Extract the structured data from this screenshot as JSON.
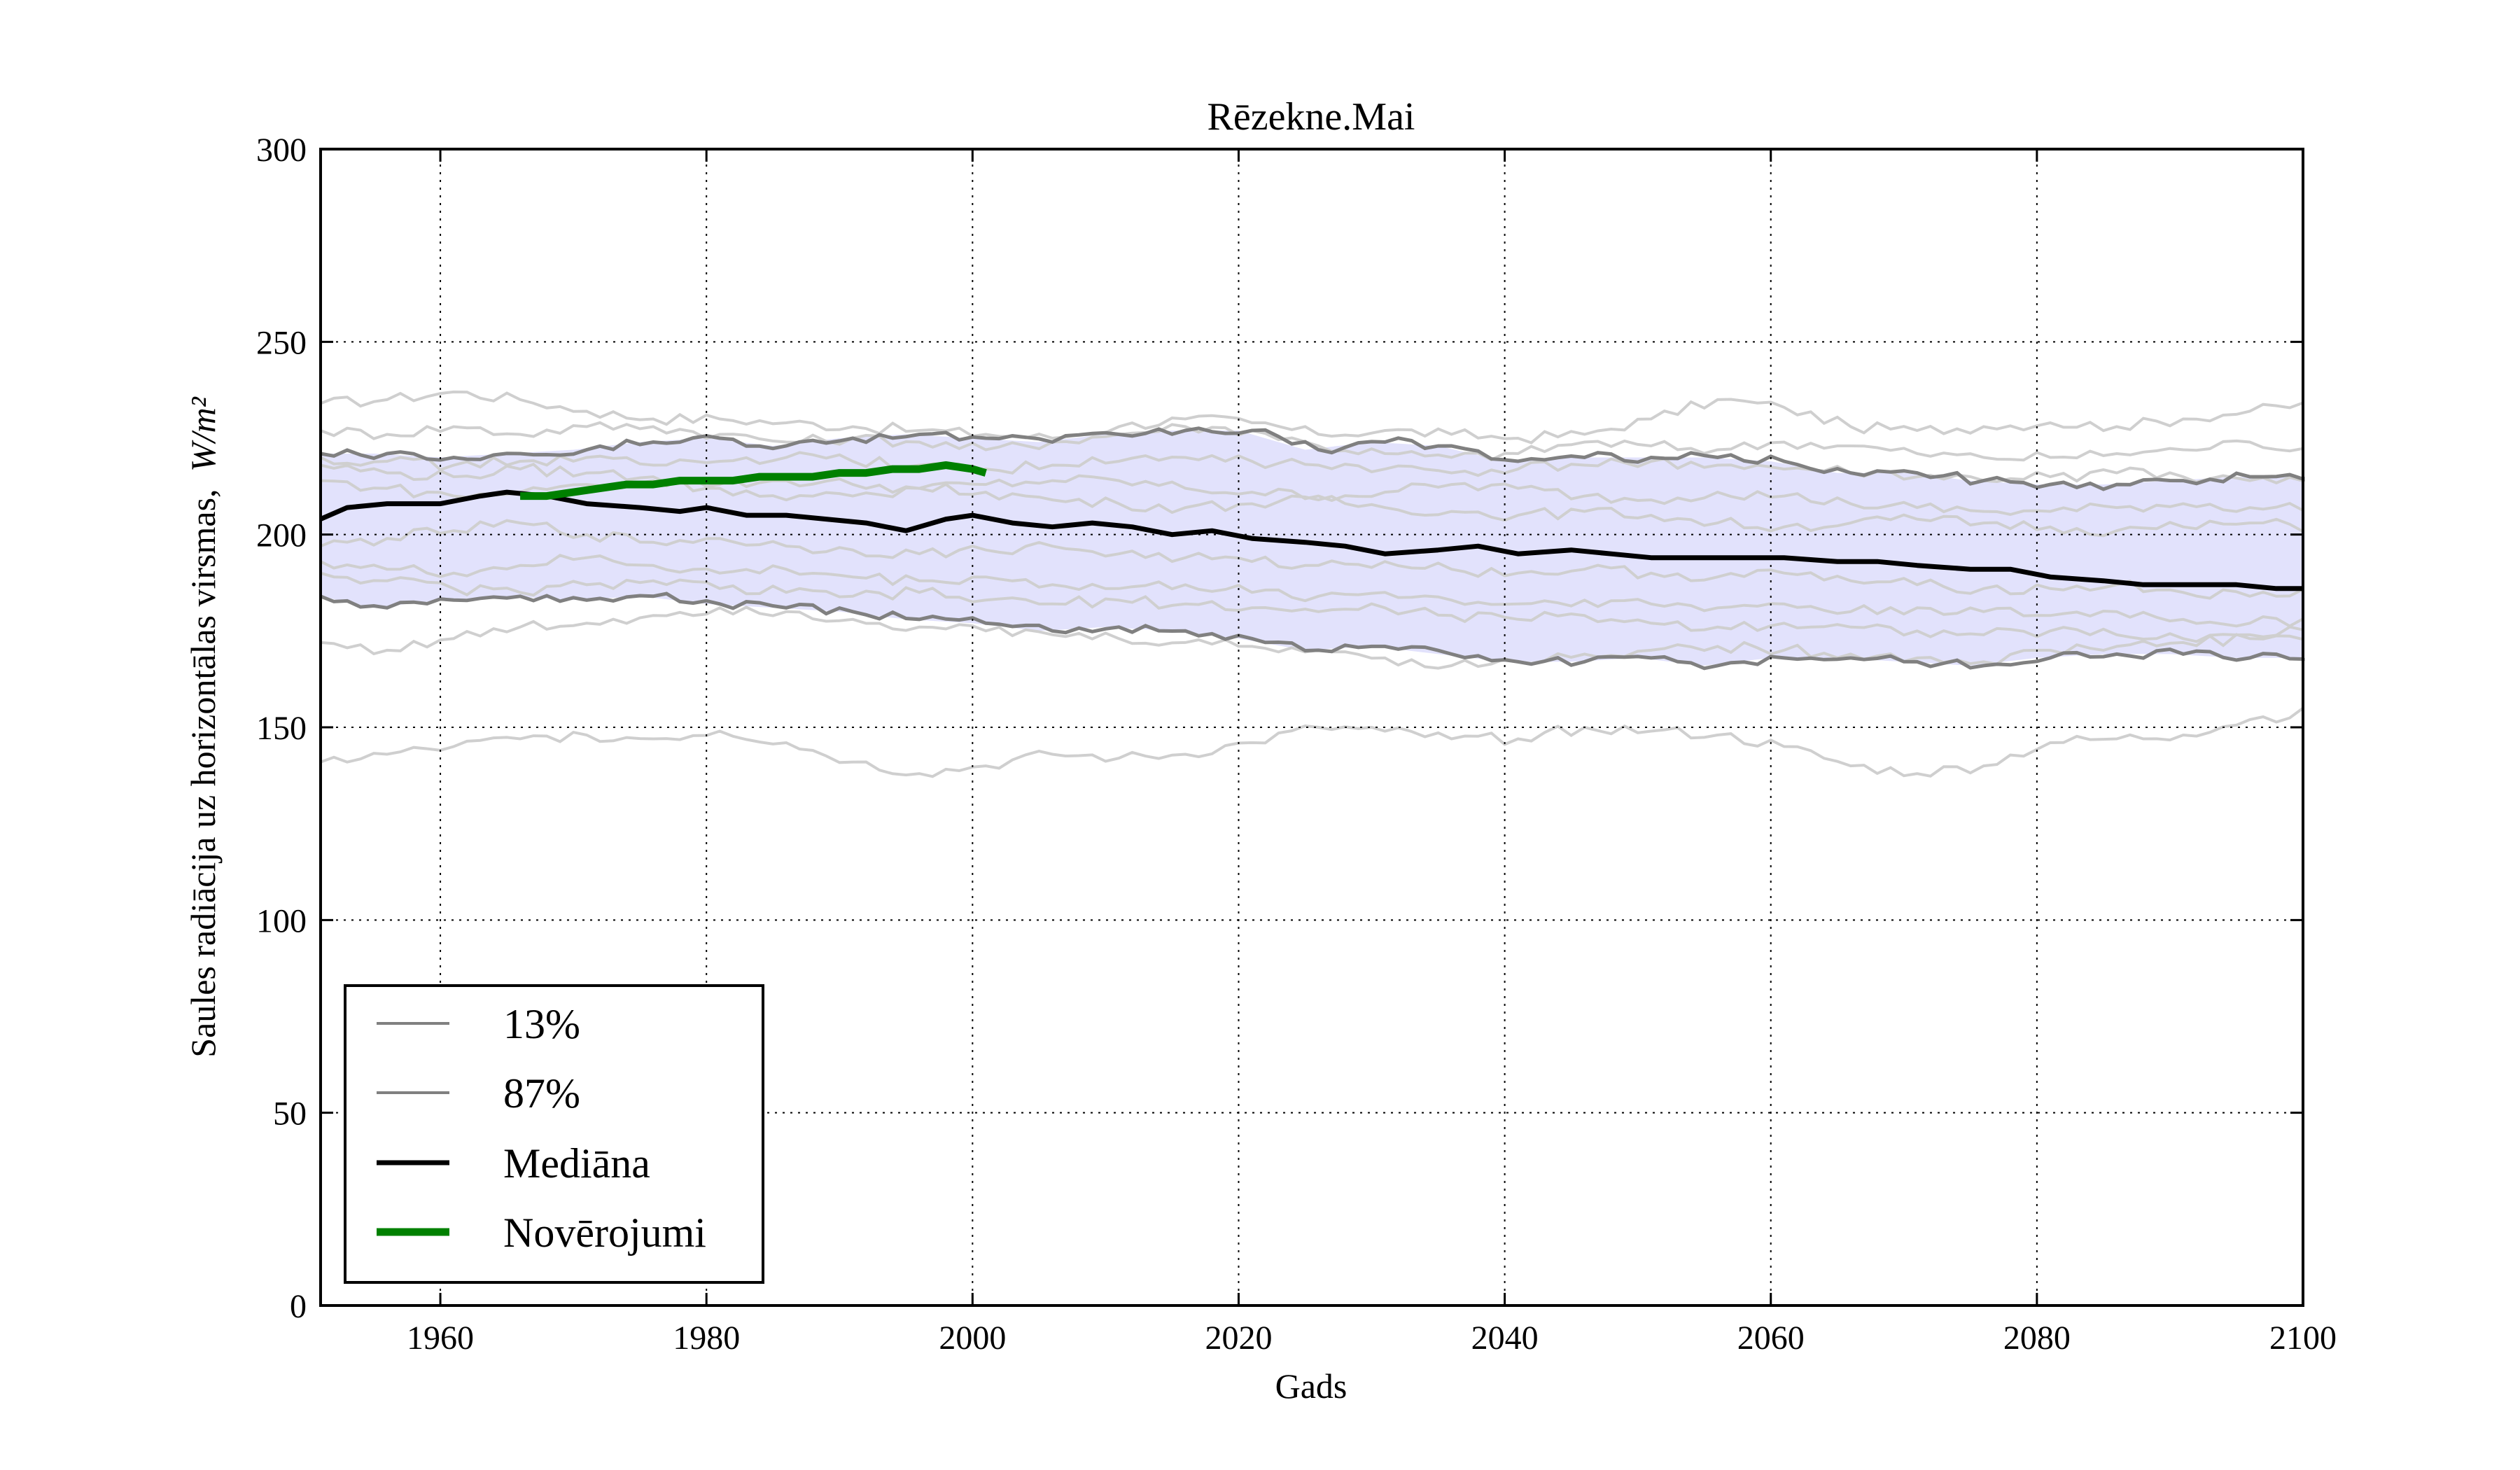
{
  "chart_data": {
    "type": "line",
    "title": "Rēzekne.Mai",
    "xlabel": "Gads",
    "ylabel": "Saules radiācija uz horizontālas virsmas,",
    "ylabel_units": "W/m²",
    "xlim": [
      1951,
      2100
    ],
    "ylim": [
      0,
      300
    ],
    "xticks": [
      1960,
      1980,
      2000,
      2020,
      2040,
      2060,
      2080,
      2100
    ],
    "yticks": [
      0,
      50,
      100,
      150,
      200,
      250,
      300
    ],
    "grid": true,
    "legend_position": "lower-left",
    "band_fill_color": "#e2e2fc",
    "ensemble_color": "#cfcfcf",
    "series": [
      {
        "name": "13%",
        "color": "#808080",
        "x": [
          1951,
          1955,
          1960,
          1965,
          1970,
          1975,
          1980,
          1985,
          1990,
          1995,
          2000,
          2005,
          2010,
          2015,
          2020,
          2025,
          2030,
          2035,
          2040,
          2045,
          2050,
          2055,
          2060,
          2065,
          2070,
          2075,
          2080,
          2085,
          2090,
          2095,
          2100
        ],
        "values": [
          184,
          181,
          183,
          184,
          183,
          184,
          182,
          181,
          180,
          178,
          177,
          175,
          176,
          175,
          173,
          170,
          171,
          169,
          167,
          167,
          168,
          166,
          168,
          168,
          167,
          166,
          168,
          169,
          169,
          168,
          168
        ]
      },
      {
        "name": "87%",
        "color": "#808080",
        "x": [
          1951,
          1955,
          1960,
          1965,
          1970,
          1975,
          1980,
          1985,
          1990,
          1995,
          2000,
          2005,
          2010,
          2015,
          2020,
          2025,
          2030,
          2035,
          2040,
          2045,
          2050,
          2055,
          2060,
          2065,
          2070,
          2075,
          2080,
          2085,
          2090,
          2095,
          2100
        ],
        "values": [
          221,
          221,
          220,
          221,
          222,
          224,
          225,
          223,
          225,
          226,
          225,
          224,
          226,
          227,
          227,
          222,
          224,
          223,
          219,
          220,
          220,
          220,
          219,
          216,
          216,
          214,
          213,
          213,
          214,
          215,
          215
        ]
      },
      {
        "name": "Mediāna",
        "color": "#000000",
        "x": [
          1951,
          1953,
          1956,
          1960,
          1963,
          1965,
          1968,
          1971,
          1975,
          1978,
          1980,
          1983,
          1986,
          1989,
          1992,
          1995,
          1998,
          2000,
          2003,
          2006,
          2009,
          2012,
          2015,
          2018,
          2021,
          2025,
          2028,
          2031,
          2035,
          2038,
          2041,
          2045,
          2048,
          2051,
          2055,
          2058,
          2061,
          2065,
          2068,
          2071,
          2075,
          2078,
          2081,
          2085,
          2088,
          2091,
          2095,
          2098,
          2100
        ],
        "values": [
          204,
          207,
          208,
          208,
          210,
          211,
          210,
          208,
          207,
          206,
          207,
          205,
          205,
          204,
          203,
          201,
          204,
          205,
          203,
          202,
          203,
          202,
          200,
          201,
          199,
          198,
          197,
          195,
          196,
          197,
          195,
          196,
          195,
          194,
          194,
          194,
          194,
          193,
          193,
          192,
          191,
          191,
          189,
          188,
          187,
          187,
          187,
          186,
          186
        ]
      },
      {
        "name": "Novērojumi",
        "color": "#008000",
        "x": [
          1966,
          1968,
          1970,
          1972,
          1974,
          1976,
          1978,
          1980,
          1982,
          1984,
          1986,
          1988,
          1990,
          1992,
          1994,
          1996,
          1998,
          2000,
          2001
        ],
        "values": [
          210,
          210,
          211,
          212,
          213,
          213,
          214,
          214,
          214,
          215,
          215,
          215,
          216,
          216,
          217,
          217,
          218,
          217,
          216
        ]
      }
    ],
    "ensemble_members": [
      [
        234,
        235,
        237,
        235,
        232,
        230,
        230,
        229,
        228,
        227,
        226,
        225,
        228,
        230,
        229,
        226,
        227,
        226,
        225,
        226,
        230,
        235,
        233,
        228,
        227,
        228,
        229,
        228,
        230,
        232,
        234
      ],
      [
        227,
        226,
        228,
        226,
        228,
        228,
        226,
        224,
        225,
        224,
        222,
        224,
        226,
        228,
        227,
        223,
        221,
        220,
        221,
        224,
        223,
        222,
        224,
        223,
        221,
        220,
        220,
        221,
        222,
        224,
        222
      ],
      [
        218,
        216,
        215,
        217,
        216,
        215,
        213,
        214,
        213,
        212,
        213,
        214,
        214,
        212,
        211,
        210,
        211,
        213,
        212,
        210,
        209,
        211,
        210,
        208,
        207,
        206,
        206,
        207,
        208,
        207,
        207
      ],
      [
        214,
        212,
        210,
        211,
        213,
        214,
        212,
        209,
        210,
        212,
        211,
        209,
        208,
        207,
        208,
        209,
        207,
        206,
        205,
        206,
        205,
        203,
        202,
        203,
        204,
        203,
        202,
        201,
        202,
        203,
        202
      ],
      [
        197,
        199,
        201,
        203,
        200,
        198,
        199,
        197,
        196,
        195,
        196,
        197,
        195,
        194,
        193,
        192,
        193,
        191,
        190,
        191,
        190,
        189,
        190,
        188,
        187,
        186,
        186,
        187,
        185,
        184,
        185
      ],
      [
        193,
        191,
        190,
        192,
        194,
        192,
        190,
        191,
        189,
        188,
        189,
        187,
        186,
        187,
        185,
        184,
        185,
        183,
        182,
        183,
        182,
        181,
        182,
        180,
        181,
        180,
        179,
        180,
        178,
        177,
        178
      ],
      [
        190,
        188,
        186,
        185,
        187,
        188,
        186,
        185,
        184,
        185,
        183,
        182,
        183,
        182,
        181,
        180,
        181,
        179,
        178,
        179,
        177,
        176,
        177,
        176,
        175,
        174,
        175,
        174,
        173,
        174,
        176
      ],
      [
        172,
        170,
        173,
        176,
        177,
        179,
        181,
        180,
        178,
        176,
        175,
        174,
        173,
        172,
        171,
        170,
        168,
        166,
        167,
        169,
        170,
        171,
        170,
        169,
        168,
        167,
        170,
        171,
        172,
        173,
        174
      ],
      [
        141,
        143,
        145,
        147,
        148,
        147,
        149,
        146,
        141,
        138,
        140,
        143,
        142,
        143,
        146,
        150,
        149,
        147,
        147,
        150,
        149,
        148,
        145,
        140,
        138,
        140,
        146,
        147,
        148,
        152,
        154
      ],
      [
        220,
        219,
        218,
        219,
        220,
        218,
        219,
        220,
        219,
        218,
        217,
        218,
        219,
        220,
        219,
        218,
        217,
        216,
        217,
        218,
        219,
        218,
        217,
        216,
        215,
        214,
        215,
        216,
        215,
        214,
        213
      ]
    ]
  }
}
